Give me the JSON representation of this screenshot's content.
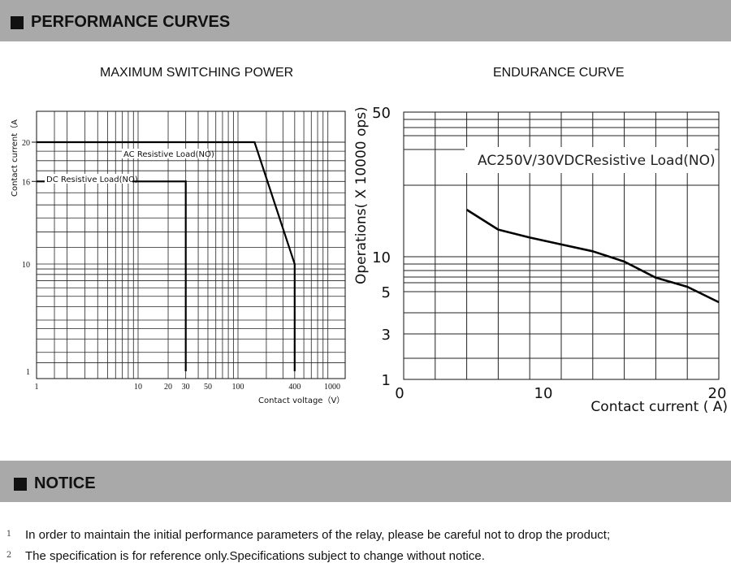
{
  "header": {
    "title": "PERFORMANCE CURVES"
  },
  "notice_header": {
    "title": "NOTICE"
  },
  "notices": [
    {
      "num": "1",
      "text": "In order to maintain the initial performance parameters of the relay, please be careful not to drop the product;"
    },
    {
      "num": "2",
      "text": "The specification is for reference only.Specifications subject to change without notice."
    }
  ],
  "chart_data": [
    {
      "type": "line",
      "title": "MAXIMUM SWITCHING POWER",
      "xlabel": "Contact voltage（V）",
      "ylabel": "Contact current（A",
      "x_scale": "log",
      "y_scale": "log",
      "x_ticks": [
        "1",
        "10",
        "20",
        "30",
        "50",
        "100",
        "400",
        "1000"
      ],
      "y_ticks": [
        "1",
        "10",
        "16",
        "20"
      ],
      "grid": true,
      "series": [
        {
          "name": "AC Resistive Load(NO)",
          "points": [
            [
              1,
              20
            ],
            [
              150,
              20
            ],
            [
              400,
              10
            ],
            [
              400,
              1
            ]
          ]
        },
        {
          "name": "DC Resistive Load(NO)",
          "points": [
            [
              1,
              16
            ],
            [
              30,
              16
            ],
            [
              30,
              1
            ]
          ]
        }
      ]
    },
    {
      "type": "line",
      "title": "ENDURANCE CURVE",
      "xlabel": "Contact current ( A)",
      "ylabel": "Operations( X 10000 ops)",
      "x_ticks": [
        "0",
        "10",
        "20"
      ],
      "y_ticks": [
        "1",
        "3",
        "5",
        "10",
        "50"
      ],
      "grid": true,
      "annotation": "AC250V/30VDCResistive Load(NO)",
      "series": [
        {
          "name": "",
          "points": [
            [
              4,
              23
            ],
            [
              6,
              17.5
            ],
            [
              8,
              15.3
            ],
            [
              10,
              13.4
            ],
            [
              12,
              11.5
            ],
            [
              14,
              9.3
            ],
            [
              16,
              7.0
            ],
            [
              18,
              5.7
            ],
            [
              20,
              4.5
            ]
          ]
        }
      ]
    }
  ]
}
